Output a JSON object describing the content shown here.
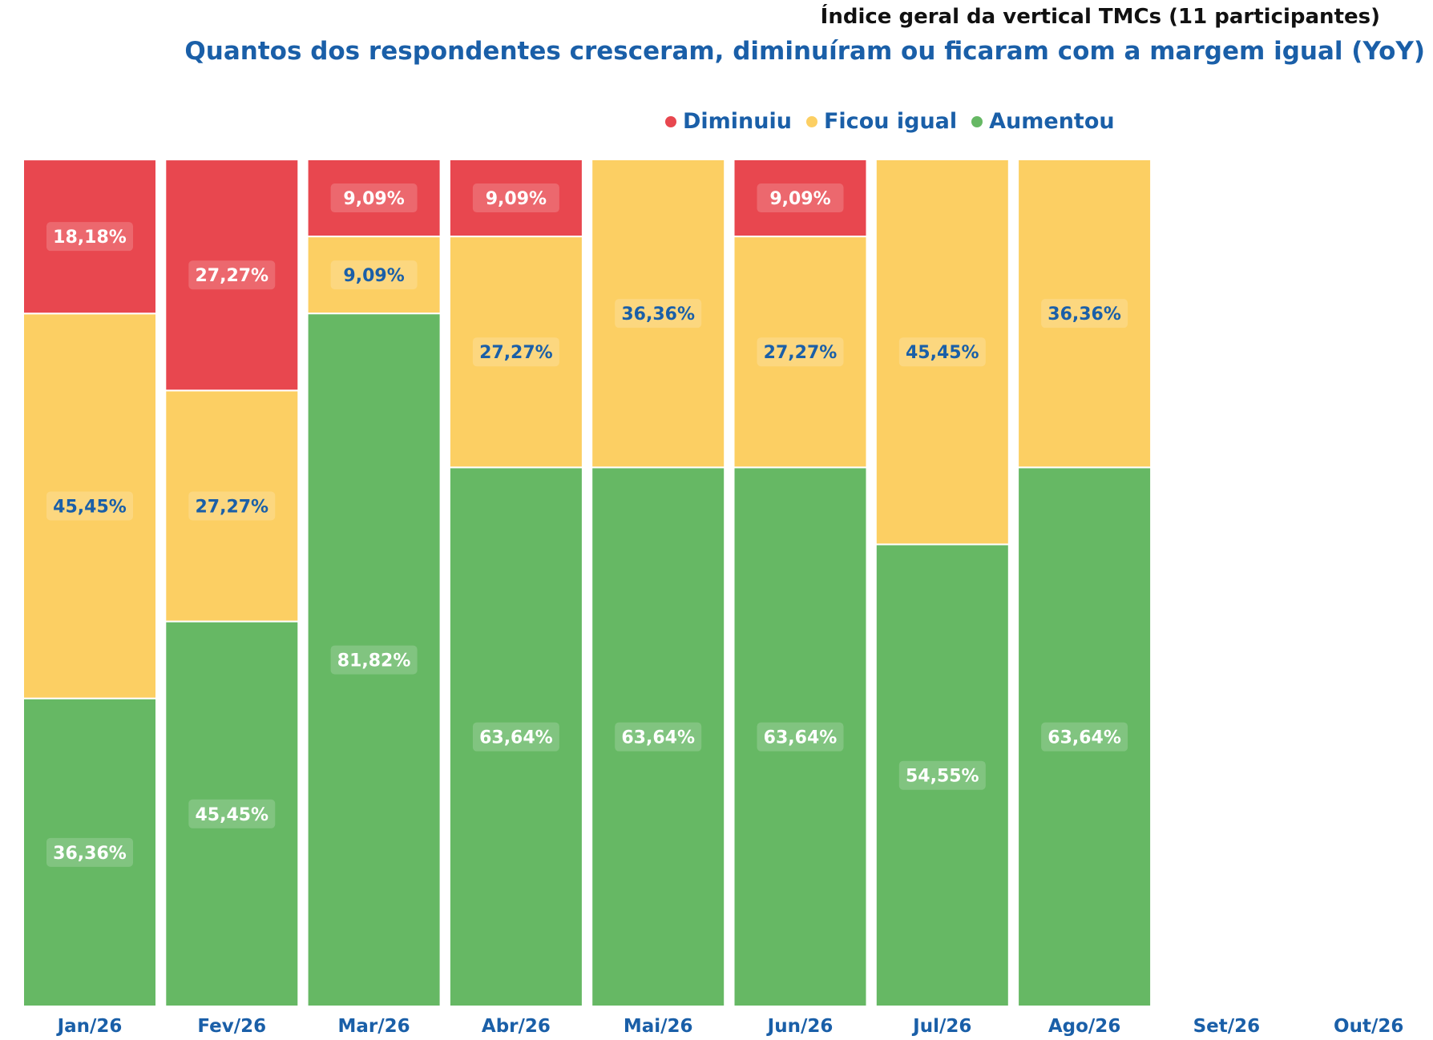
{
  "chart_data": {
    "type": "bar",
    "stacked": true,
    "title": "Índice geral da vertical TMCs  (11 participantes)",
    "subtitle": "Quantos dos respondentes cresceram, diminuíram ou ficaram com a margem igual (YoY)",
    "categories": [
      "Jan/26",
      "Fev/26",
      "Mar/26",
      "Abr/26",
      "Mai/26",
      "Jun/26",
      "Jul/26",
      "Ago/26",
      "Set/26",
      "Out/26"
    ],
    "series": [
      {
        "name": "Aumentou",
        "color": "#66b864",
        "label_color": "#ffffff",
        "values": [
          36.36,
          45.45,
          81.82,
          63.64,
          63.64,
          63.64,
          54.55,
          63.64,
          null,
          null
        ],
        "labels": [
          "36,36%",
          "45,45%",
          "81,82%",
          "63,64%",
          "63,64%",
          "63,64%",
          "54,55%",
          "63,64%",
          null,
          null
        ]
      },
      {
        "name": "Ficou igual",
        "color": "#fccf63",
        "label_color": "#1a5fa8",
        "values": [
          45.45,
          27.27,
          9.09,
          27.27,
          36.36,
          27.27,
          45.45,
          36.36,
          null,
          null
        ],
        "labels": [
          "45,45%",
          "27,27%",
          "9,09%",
          "27,27%",
          "36,36%",
          "27,27%",
          "45,45%",
          "36,36%",
          null,
          null
        ]
      },
      {
        "name": "Diminuiu",
        "color": "#e8474f",
        "label_color": "#ffffff",
        "values": [
          18.18,
          27.27,
          9.09,
          9.09,
          0,
          9.09,
          0,
          0,
          null,
          null
        ],
        "labels": [
          "18,18%",
          "27,27%",
          "9,09%",
          "9,09%",
          null,
          "9,09%",
          null,
          null,
          null,
          null
        ]
      }
    ],
    "legend": [
      "Diminuiu",
      "Ficou igual",
      "Aumentou"
    ],
    "legend_position": "top",
    "ylim": [
      0,
      100
    ],
    "grid": false,
    "axis_label_color": "#1a5fa8"
  }
}
